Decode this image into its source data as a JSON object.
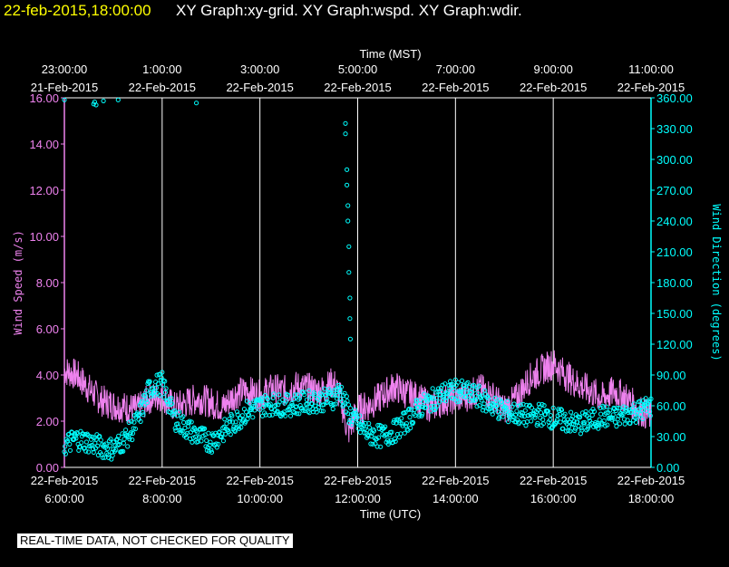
{
  "header": {
    "date": "22-feb-2015,18:00:00",
    "graphs": "XY Graph:xy-grid.  XY Graph:wspd.  XY Graph:wdir."
  },
  "footer": {
    "quality_note": "REAL-TIME DATA, NOT CHECKED FOR QUALITY"
  },
  "colors": {
    "speed": "#ee82ee",
    "direction": "#00ffff",
    "grid": "#ffffff",
    "header": "#ffff00"
  },
  "chart_data": {
    "type": "line",
    "title": "XY Graph:wspd / XY Graph:wdir",
    "x_range_utc_hours": [
      6,
      18
    ],
    "top_axis": {
      "title": "Time (MST)",
      "ticks": [
        {
          "time": "23:00:00",
          "date": "21-Feb-2015"
        },
        {
          "time": "1:00:00",
          "date": "22-Feb-2015"
        },
        {
          "time": "3:00:00",
          "date": "22-Feb-2015"
        },
        {
          "time": "5:00:00",
          "date": "22-Feb-2015"
        },
        {
          "time": "7:00:00",
          "date": "22-Feb-2015"
        },
        {
          "time": "9:00:00",
          "date": "22-Feb-2015"
        },
        {
          "time": "11:00:00",
          "date": "22-Feb-2015"
        }
      ]
    },
    "bottom_axis": {
      "title": "Time (UTC)",
      "ticks": [
        {
          "date": "22-Feb-2015",
          "time": "6:00:00"
        },
        {
          "date": "22-Feb-2015",
          "time": "8:00:00"
        },
        {
          "date": "22-Feb-2015",
          "time": "10:00:00"
        },
        {
          "date": "22-Feb-2015",
          "time": "12:00:00"
        },
        {
          "date": "22-Feb-2015",
          "time": "14:00:00"
        },
        {
          "date": "22-Feb-2015",
          "time": "16:00:00"
        },
        {
          "date": "22-Feb-2015",
          "time": "18:00:00"
        }
      ]
    },
    "left_axis": {
      "title": "Wind Speed (m/s)",
      "ylim": [
        0,
        16
      ],
      "ticks": [
        "0.00",
        "2.00",
        "4.00",
        "6.00",
        "8.00",
        "10.00",
        "12.00",
        "14.00",
        "16.00"
      ]
    },
    "right_axis": {
      "title": "Wind Direction (degrees)",
      "ylim": [
        0,
        360
      ],
      "ticks": [
        "0.00",
        "30.00",
        "60.00",
        "90.00",
        "120.00",
        "150.00",
        "180.00",
        "210.00",
        "240.00",
        "270.00",
        "300.00",
        "330.00",
        "360.00"
      ]
    },
    "series": [
      {
        "name": "Wind Speed (m/s)",
        "style": "line",
        "x_utc_hours": [
          6.0,
          6.25,
          6.5,
          6.75,
          7.0,
          7.25,
          7.5,
          7.75,
          8.0,
          8.25,
          8.5,
          8.75,
          9.0,
          9.25,
          9.5,
          9.75,
          10.0,
          10.25,
          10.5,
          10.75,
          11.0,
          11.25,
          11.5,
          11.65,
          11.8,
          12.0,
          12.25,
          12.5,
          12.75,
          13.0,
          13.25,
          13.5,
          13.75,
          14.0,
          14.25,
          14.5,
          14.75,
          15.0,
          15.25,
          15.5,
          15.75,
          16.0,
          16.25,
          16.5,
          16.75,
          17.0,
          17.25,
          17.5,
          17.75,
          18.0
        ],
        "values": [
          4.2,
          4.0,
          3.4,
          2.9,
          2.7,
          2.6,
          2.5,
          3.0,
          3.1,
          2.6,
          2.8,
          3.0,
          2.8,
          2.6,
          3.2,
          3.3,
          3.1,
          3.4,
          3.3,
          3.5,
          3.4,
          3.3,
          3.7,
          3.0,
          1.5,
          2.5,
          2.7,
          3.1,
          3.5,
          3.2,
          3.0,
          2.6,
          2.9,
          3.0,
          3.1,
          3.4,
          3.1,
          2.5,
          3.0,
          3.8,
          4.2,
          4.5,
          4.0,
          3.6,
          3.3,
          3.0,
          3.3,
          3.0,
          2.5,
          2.2
        ]
      },
      {
        "name": "Wind Direction (degrees)",
        "style": "scatter",
        "x_utc_hours": [
          6.0,
          6.25,
          6.5,
          6.75,
          7.0,
          7.25,
          7.5,
          7.75,
          8.0,
          8.25,
          8.5,
          8.75,
          9.0,
          9.25,
          9.5,
          9.75,
          10.0,
          10.25,
          10.5,
          10.75,
          11.0,
          11.25,
          11.5,
          11.65,
          11.8,
          12.0,
          12.25,
          12.5,
          12.75,
          13.0,
          13.25,
          13.5,
          13.75,
          14.0,
          14.25,
          14.5,
          14.75,
          15.0,
          15.25,
          15.5,
          15.75,
          16.0,
          16.25,
          16.5,
          16.75,
          17.0,
          17.25,
          17.5,
          17.75,
          18.0
        ],
        "values": [
          22,
          28,
          25,
          20,
          18,
          28,
          45,
          78,
          82,
          48,
          38,
          30,
          25,
          35,
          45,
          55,
          60,
          62,
          60,
          62,
          64,
          65,
          68,
          75,
          55,
          42,
          32,
          30,
          35,
          45,
          58,
          65,
          72,
          75,
          72,
          68,
          60,
          55,
          52,
          50,
          52,
          48,
          45,
          42,
          45,
          50,
          48,
          52,
          55,
          60
        ]
      },
      {
        "name": "Wind Direction spike (degrees)",
        "style": "scatter",
        "x_utc_hours": [
          11.75,
          11.75,
          11.78,
          11.78,
          11.8,
          11.8,
          11.82,
          11.82,
          11.84,
          11.84,
          11.85
        ],
        "values": [
          335,
          325,
          290,
          275,
          255,
          240,
          215,
          190,
          165,
          145,
          125
        ]
      },
      {
        "name": "Wind Direction high outliers (degrees)",
        "style": "scatter",
        "x_utc_hours": [
          6.0,
          6.6,
          6.62,
          6.65,
          6.8,
          7.1,
          8.7
        ],
        "values": [
          358,
          354,
          356,
          353,
          357,
          358,
          355
        ]
      }
    ]
  }
}
